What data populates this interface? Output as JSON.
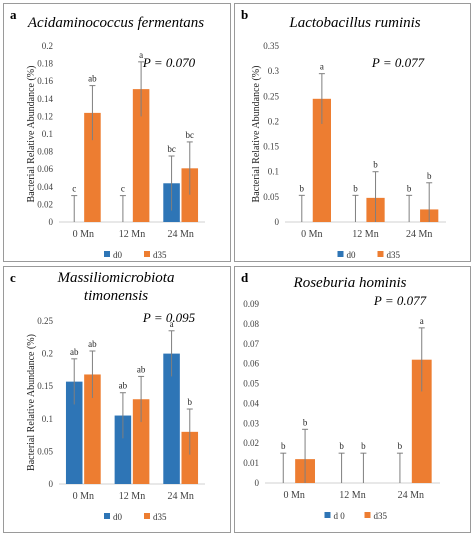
{
  "chart_data": [
    {
      "type": "bar",
      "panel_letter": "a",
      "title": "Acidaminococcus fermentans",
      "p_value": "P = 0.070",
      "ylabel": "Bacterial Relative Abundance (%)",
      "ylim": [
        0,
        0.2
      ],
      "yticks": [
        "0",
        "0.02",
        "0.04",
        "0.06",
        "0.08",
        "0.1",
        "0.12",
        "0.14",
        "0.16",
        "0.18",
        "0.2"
      ],
      "categories": [
        "0 Mn",
        "12 Mn",
        "24 Mn"
      ],
      "series": [
        {
          "name": "d0",
          "color": "#2e75b6",
          "values": [
            0,
            0,
            0.044
          ],
          "errors": [
            0.03,
            0.03,
            0.031
          ],
          "letters": [
            "c",
            "c",
            "bc"
          ]
        },
        {
          "name": "d35",
          "color": "#ed7d31",
          "values": [
            0.124,
            0.151,
            0.061
          ],
          "errors": [
            0.031,
            0.031,
            0.03
          ],
          "letters": [
            "ab",
            "a",
            "bc"
          ]
        }
      ],
      "legend_position": "bottom"
    },
    {
      "type": "bar",
      "panel_letter": "b",
      "title": "Lactobacillus ruminis",
      "p_value": "P = 0.077",
      "ylabel": "Bacterial Relative Abundance (%)",
      "ylim": [
        0,
        0.35
      ],
      "yticks": [
        "0",
        "0.05",
        "0.1",
        "0.15",
        "0.2",
        "0.25",
        "0.3",
        "0.35"
      ],
      "categories": [
        "0 Mn",
        "12 Mn",
        "24 Mn"
      ],
      "series": [
        {
          "name": "d0",
          "color": "#2e75b6",
          "values": [
            0,
            0,
            0
          ],
          "errors": [
            0.053,
            0.053,
            0.053
          ],
          "letters": [
            "b",
            "b",
            "b"
          ]
        },
        {
          "name": "d35",
          "color": "#ed7d31",
          "values": [
            0.245,
            0.048,
            0.025
          ],
          "errors": [
            0.05,
            0.052,
            0.053
          ],
          "letters": [
            "a",
            "b",
            "b"
          ]
        }
      ],
      "legend_position": "bottom"
    },
    {
      "type": "bar",
      "panel_letter": "c",
      "title": "Massiliomicrobiota timonensis",
      "title_lines": [
        "Massiliomicrobiota",
        "timonensis"
      ],
      "p_value": "P = 0.095",
      "ylabel": "Bacterial Relative Abundance (%)",
      "ylim": [
        0,
        0.25
      ],
      "yticks": [
        "0",
        "0.05",
        "0.1",
        "0.15",
        "0.2",
        "0.25"
      ],
      "categories": [
        "0 Mn",
        "12 Mn",
        "24 Mn"
      ],
      "series": [
        {
          "name": "d0",
          "color": "#2e75b6",
          "values": [
            0.157,
            0.105,
            0.2
          ],
          "errors": [
            0.035,
            0.035,
            0.035
          ],
          "letters": [
            "ab",
            "ab",
            "a"
          ]
        },
        {
          "name": "d35",
          "color": "#ed7d31",
          "values": [
            0.168,
            0.13,
            0.08
          ],
          "errors": [
            0.036,
            0.035,
            0.035
          ],
          "letters": [
            "ab",
            "ab",
            "b"
          ]
        }
      ],
      "legend_position": "bottom"
    },
    {
      "type": "bar",
      "panel_letter": "d",
      "title": "Roseburia hominis",
      "p_value": "P = 0.077",
      "ylabel": "",
      "ylim": [
        0,
        0.09
      ],
      "yticks": [
        "0",
        "0.01",
        "0.02",
        "0.03",
        "0.04",
        "0.05",
        "0.06",
        "0.07",
        "0.08",
        "0.09"
      ],
      "categories": [
        "0 Mn",
        "12 Mn",
        "24 Mn"
      ],
      "series": [
        {
          "name": "d 0",
          "color": "#2e75b6",
          "values": [
            0,
            0,
            0
          ],
          "errors": [
            0.015,
            0.015,
            0.015
          ],
          "letters": [
            "b",
            "b",
            "b"
          ]
        },
        {
          "name": "d35",
          "color": "#ed7d31",
          "values": [
            0.012,
            0,
            0.062
          ],
          "errors": [
            0.015,
            0.015,
            0.016
          ],
          "letters": [
            "b",
            "b",
            "a"
          ]
        }
      ],
      "legend_position": "bottom"
    }
  ]
}
